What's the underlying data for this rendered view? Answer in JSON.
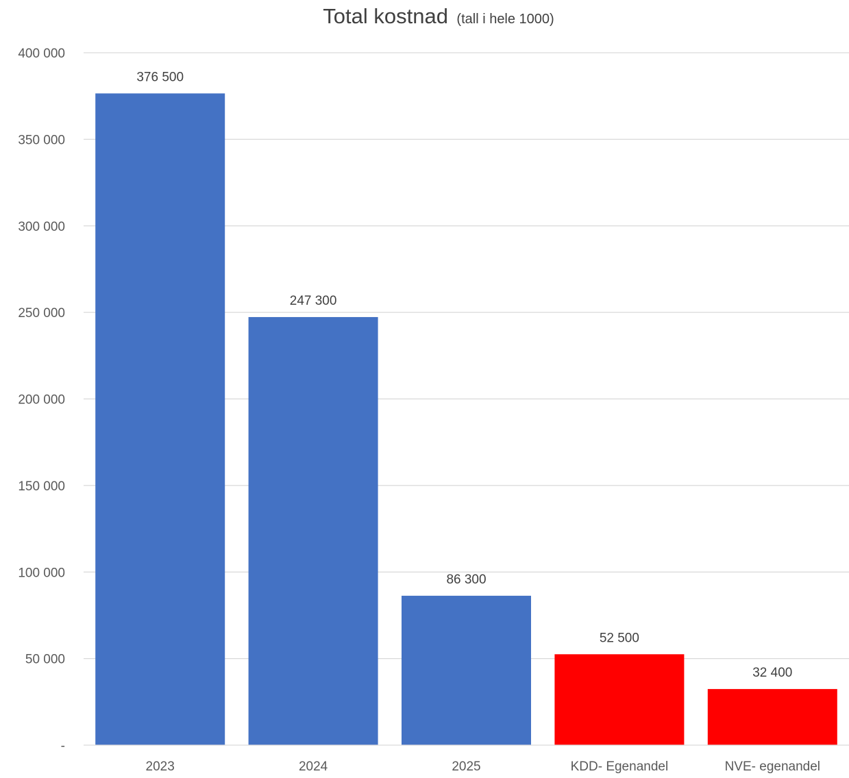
{
  "chart_data": {
    "type": "bar",
    "title": "Total kostnad",
    "subtitle": "(tall i hele 1000)",
    "categories": [
      "2023",
      "2024",
      "2025",
      "KDD- Egenandel",
      "NVE- egenandel"
    ],
    "values": [
      376500,
      247300,
      86300,
      52500,
      32400
    ],
    "data_labels": [
      "376 500",
      "247 300",
      "86 300",
      "52 500",
      "32 400"
    ],
    "bar_colors": [
      "#4472C4",
      "#4472C4",
      "#4472C4",
      "#FF0000",
      "#FF0000"
    ],
    "ylim": [
      0,
      400000
    ],
    "yticks": [
      0,
      50000,
      100000,
      150000,
      200000,
      250000,
      300000,
      350000,
      400000
    ],
    "ytick_labels": [
      "-",
      "50 000",
      "100 000",
      "150 000",
      "200 000",
      "250 000",
      "300 000",
      "350 000",
      "400 000"
    ],
    "xlabel": "",
    "ylabel": "",
    "grid": true,
    "legend": "none"
  }
}
